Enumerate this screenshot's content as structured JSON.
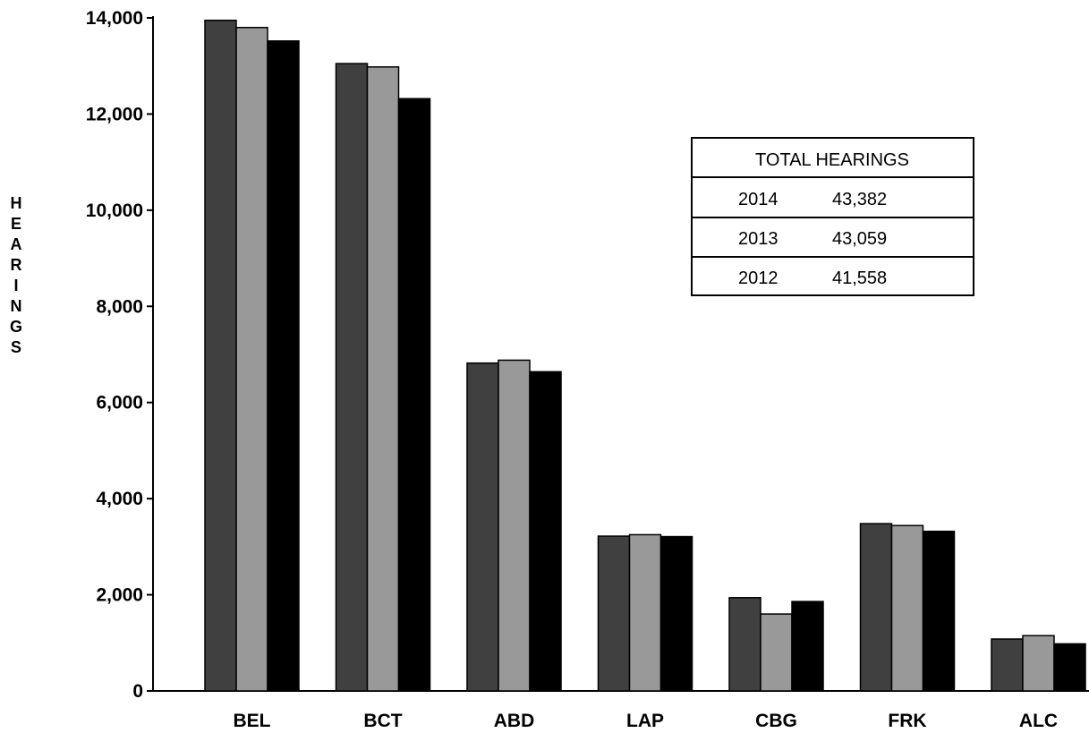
{
  "chart_data": {
    "type": "bar",
    "title": "",
    "xlabel": "",
    "ylabel": "HEARINGS",
    "ylim": [
      0,
      14000
    ],
    "y_ticks": [
      "0",
      "2,000",
      "4,000",
      "6,000",
      "8,000",
      "10,000",
      "12,000",
      "14,000"
    ],
    "y_tick_values": [
      0,
      2000,
      4000,
      6000,
      8000,
      10000,
      12000,
      14000
    ],
    "grid": false,
    "categories": [
      "BEL",
      "BCT",
      "ABD",
      "LAP",
      "CBG",
      "FRK",
      "ALC"
    ],
    "series": [
      {
        "color": "#404040",
        "values": [
          13950,
          13050,
          6820,
          3220,
          1940,
          3480,
          1080
        ]
      },
      {
        "color": "#999999",
        "values": [
          13800,
          12980,
          6880,
          3250,
          1600,
          3440,
          1150
        ]
      },
      {
        "color": "#000000",
        "values": [
          13520,
          12320,
          6640,
          3210,
          1860,
          3320,
          980
        ]
      }
    ],
    "inset_table": {
      "header": "TOTAL HEARINGS",
      "rows": [
        {
          "year": "2014",
          "total": "43,382"
        },
        {
          "year": "2013",
          "total": "43,059"
        },
        {
          "year": "2012",
          "total": "41,558"
        }
      ]
    }
  }
}
